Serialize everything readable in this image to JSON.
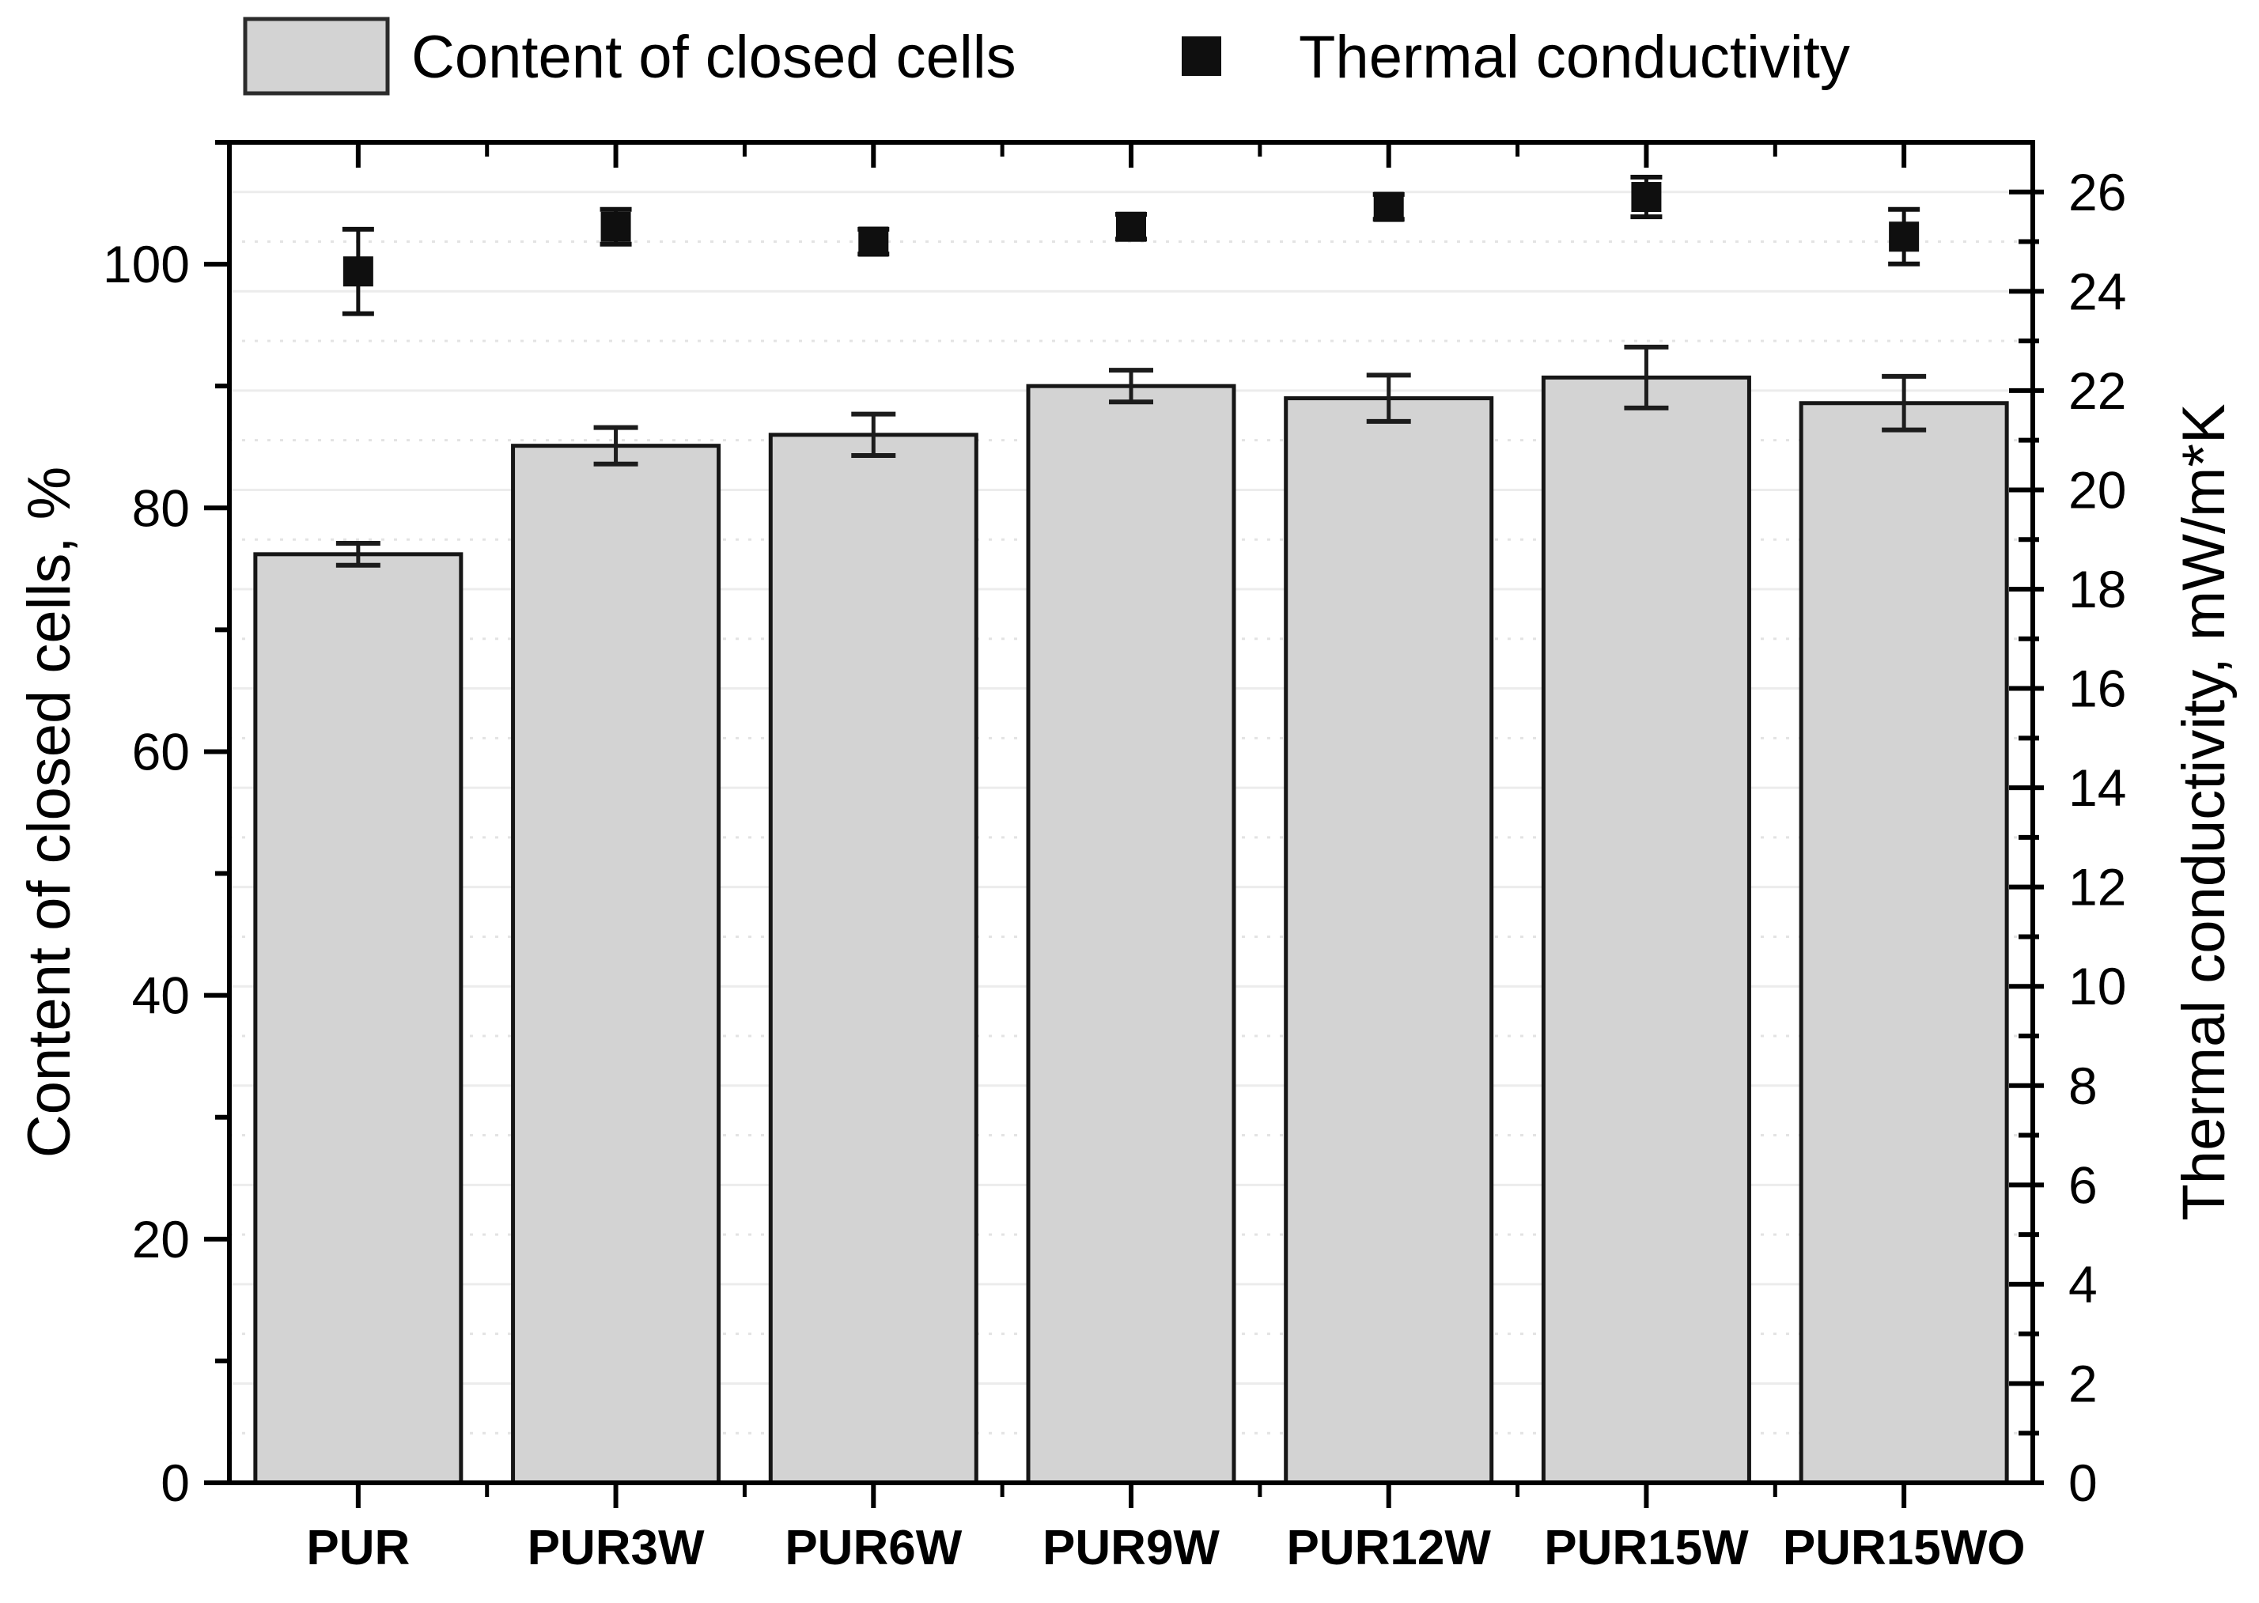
{
  "chart_data": {
    "type": "bar",
    "subtype": "dual-axis bar + scatter with error bars",
    "categories": [
      "PUR",
      "PUR3W",
      "PUR6W",
      "PUR9W",
      "PUR12W",
      "PUR15W",
      "PUR15WO"
    ],
    "series": [
      {
        "name": "Content of closed cells",
        "type": "bar",
        "axis": "left",
        "values": [
          76.2,
          85.1,
          86.0,
          90.0,
          89.0,
          90.7,
          88.6
        ],
        "errors": [
          0.9,
          1.5,
          1.7,
          1.3,
          1.9,
          2.5,
          2.2
        ],
        "fill": "#d3d3d3",
        "stroke": "#161616"
      },
      {
        "name": "Thermal conductivity",
        "type": "scatter",
        "marker": "square",
        "axis": "right",
        "values": [
          24.4,
          25.3,
          25.0,
          25.3,
          25.7,
          25.9,
          25.1
        ],
        "errors": [
          0.85,
          0.35,
          0.25,
          0.25,
          0.25,
          0.4,
          0.55
        ],
        "color": "#0f0f0f"
      }
    ],
    "left_axis": {
      "label": "Content of closed cells, %",
      "min": 0,
      "max": 110,
      "major_step": 20,
      "minor_step": 10,
      "tick_labels": [
        "0",
        "20",
        "40",
        "60",
        "80",
        "100"
      ]
    },
    "right_axis": {
      "label": "Thermal conductivity, mW/m*K",
      "min": 0,
      "max": 27,
      "major_step": 2,
      "minor_step": 1,
      "tick_labels": [
        "0",
        "2",
        "4",
        "6",
        "8",
        "10",
        "12",
        "14",
        "16",
        "18",
        "20",
        "22",
        "24",
        "26"
      ]
    },
    "x_axis": {
      "label": ""
    },
    "legend": {
      "position": "top",
      "items": [
        {
          "swatch": "bar",
          "label": "Content of closed cells",
          "color": "#d3d3d3"
        },
        {
          "swatch": "square-marker",
          "label": "Thermal conductivity",
          "color": "#0f0f0f"
        }
      ]
    },
    "grid": {
      "horizontal_major": "solid light gray at even right-axis values",
      "horizontal_minor": "dotted light gray at odd right-axis values",
      "major_color": "#ececec",
      "minor_color": "#e3e3e3"
    }
  }
}
